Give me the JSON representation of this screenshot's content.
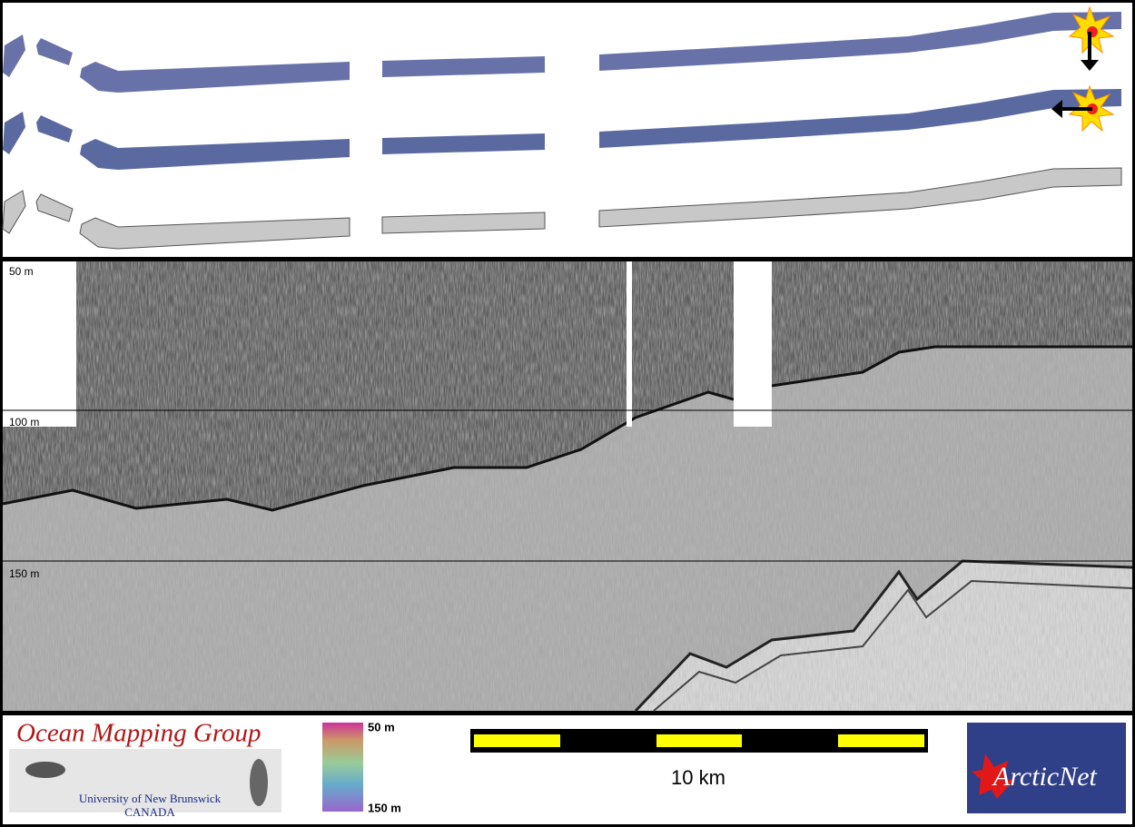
{
  "profile": {
    "depth_labels": [
      "50 m",
      "100 m",
      "150 m"
    ]
  },
  "footer": {
    "logo_title": "Ocean Mapping Group",
    "logo_line1": "University of New Brunswick",
    "logo_line2": "CANADA",
    "colorbar_top": "50 m",
    "colorbar_bottom": "150 m",
    "scale_label": "10 km",
    "partner_logo": "ArcticNet"
  }
}
